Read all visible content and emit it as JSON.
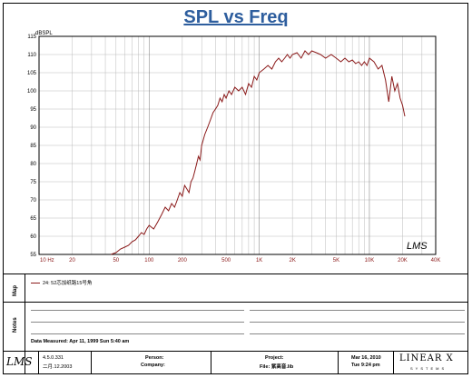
{
  "chart_data": {
    "type": "line",
    "title": "SPL vs Freq",
    "ylabel": "dBSPL",
    "xlabel": "",
    "x_scale": "log",
    "xlim": [
      10,
      40000
    ],
    "ylim": [
      55,
      115
    ],
    "grid": true,
    "y_ticks": [
      55,
      60,
      65,
      70,
      75,
      80,
      85,
      90,
      95,
      100,
      105,
      110,
      115
    ],
    "x_tick_labels": [
      {
        "value": 10,
        "label": "10  Hz"
      },
      {
        "value": 20,
        "label": "20"
      },
      {
        "value": 50,
        "label": "50"
      },
      {
        "value": 100,
        "label": "100"
      },
      {
        "value": 200,
        "label": "200"
      },
      {
        "value": 500,
        "label": "500"
      },
      {
        "value": 1000,
        "label": "1K"
      },
      {
        "value": 2000,
        "label": "2K"
      },
      {
        "value": 5000,
        "label": "5K"
      },
      {
        "value": 10000,
        "label": "10K"
      },
      {
        "value": 20000,
        "label": "20K"
      },
      {
        "value": 40000,
        "label": "40K"
      }
    ],
    "series": [
      {
        "name": "24: 52芯加纸路15号角",
        "color": "#8b1a1a",
        "x": [
          45,
          50,
          55,
          60,
          65,
          70,
          75,
          80,
          85,
          90,
          95,
          100,
          110,
          120,
          130,
          140,
          150,
          160,
          170,
          180,
          190,
          200,
          210,
          220,
          230,
          240,
          250,
          260,
          270,
          280,
          290,
          300,
          320,
          340,
          360,
          380,
          400,
          420,
          440,
          460,
          480,
          500,
          530,
          560,
          600,
          650,
          700,
          750,
          800,
          850,
          900,
          950,
          1000,
          1100,
          1200,
          1300,
          1400,
          1500,
          1600,
          1700,
          1800,
          1900,
          2000,
          2200,
          2400,
          2600,
          2800,
          3000,
          3300,
          3600,
          4000,
          4500,
          5000,
          5500,
          6000,
          6500,
          7000,
          7500,
          8000,
          8500,
          9000,
          9500,
          10000,
          11000,
          12000,
          13000,
          14000,
          15000,
          16000,
          17000,
          18000,
          19000,
          20000,
          21000
        ],
        "y": [
          55,
          55.5,
          56.5,
          57,
          57.5,
          58.5,
          59,
          60,
          61,
          60.5,
          62,
          63,
          62,
          64,
          66,
          68,
          67,
          69,
          68,
          70,
          72,
          71,
          74,
          73,
          72,
          75,
          76,
          78,
          80,
          82,
          81,
          85,
          88,
          90,
          92,
          94,
          95,
          96,
          98,
          97,
          99,
          98,
          100,
          99,
          101,
          100,
          101,
          99,
          102,
          101,
          104,
          103,
          105,
          106,
          107,
          106,
          108,
          109,
          108,
          109,
          110,
          109,
          110,
          110.5,
          109,
          111,
          110,
          111,
          110.5,
          110,
          109,
          110,
          109,
          108,
          109,
          108,
          108.5,
          107.5,
          108,
          107,
          108,
          107,
          109,
          108,
          106,
          107,
          103,
          97,
          104,
          100,
          102,
          98,
          96,
          93
        ]
      }
    ]
  },
  "watermark": "LMS",
  "map_label": "Map",
  "notes_label": "Notes",
  "data_measured": "Data Measured: Apr 11, 1999  Sun  5:40 am",
  "footer": {
    "version": "4.5.0.331",
    "version_date": "二月.12.2003",
    "person_label": "Person:",
    "company_label": "Company:",
    "project_label": "Project:",
    "file_label": "File: 紫高音.lib",
    "date": "Mar 16, 2010",
    "time": "Tue  9:24 pm",
    "brand": "LINEAR X",
    "brand_sub": "SYSTEMS",
    "lms_logo": "LMS"
  }
}
